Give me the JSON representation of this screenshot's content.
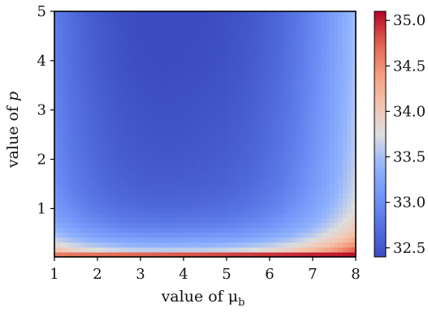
{
  "chart_data": {
    "type": "heatmap",
    "title": "",
    "xlabel": "value of μ",
    "xlabel_sub": "b",
    "ylabel_prefix": "value of ",
    "ylabel_var": "p",
    "xlim": [
      1,
      8
    ],
    "ylim": [
      0.02,
      5
    ],
    "x_ticks": [
      "1",
      "2",
      "3",
      "4",
      "5",
      "6",
      "7",
      "8"
    ],
    "y_ticks": [
      "1",
      "2",
      "3",
      "4",
      "5"
    ],
    "colorbar": {
      "range": [
        32.4,
        35.1
      ],
      "ticks": [
        "32.5",
        "33.0",
        "33.5",
        "34.0",
        "34.5",
        "35.0"
      ],
      "colormap": "coolwarm"
    },
    "grid": false,
    "legend": "none",
    "z_description_values": {
      "minimum": 32.5,
      "minimum_location": {
        "mu_b": 4.1,
        "p": 3.6
      },
      "maximum": 35.0,
      "maximum_location": {
        "mu_b": 8,
        "p": 0.05
      }
    },
    "colors": {
      "low": "#3b4cc0",
      "mid": "#dddddd",
      "high": "#b40426"
    }
  }
}
